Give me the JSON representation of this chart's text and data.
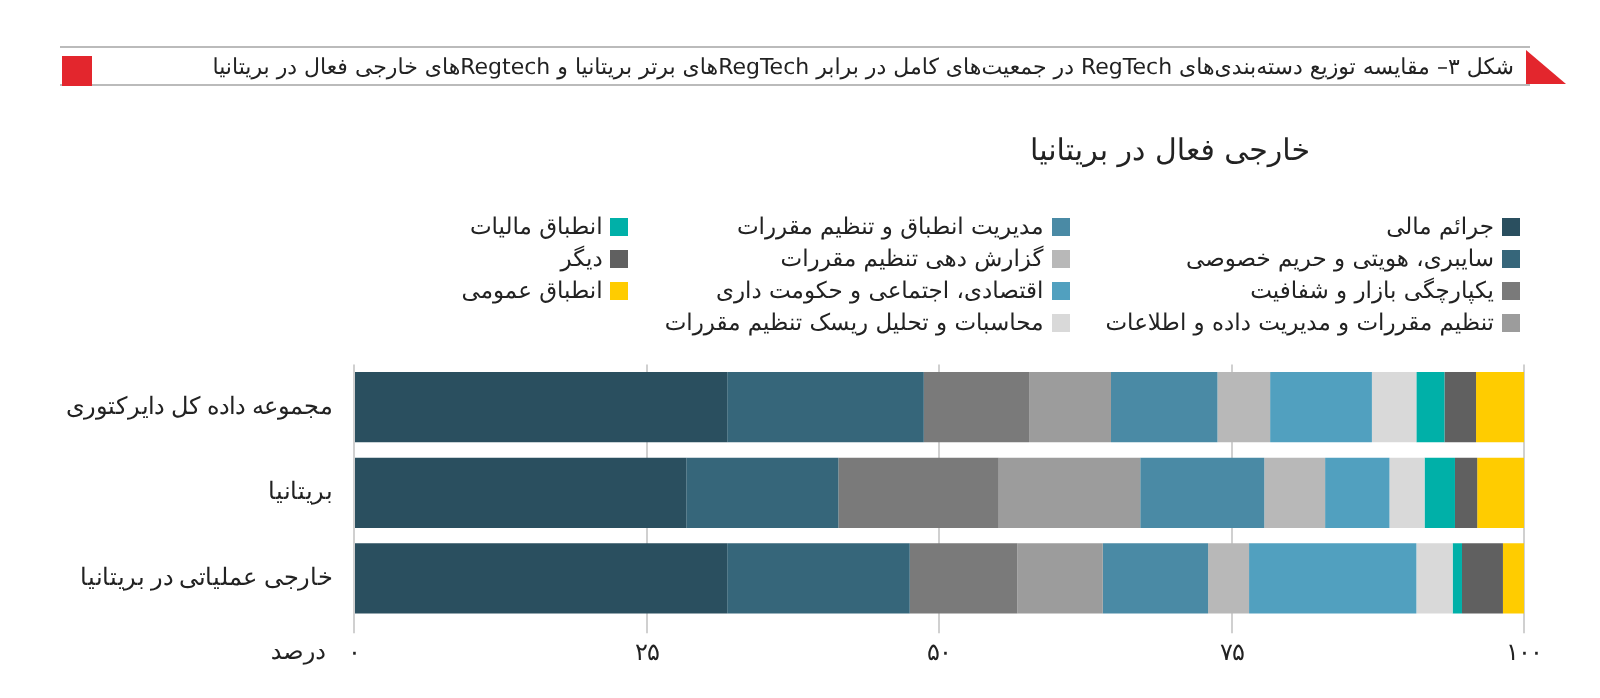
{
  "chart_data": {
    "type": "bar",
    "orientation": "horizontal",
    "stacked": true,
    "title": "شکل ۳– مقایسه توزیع دسته‌بندی‌های RegTech در جمعیت‌های کامل در برابر RegTechهای برتر بریتانیا و Regtechهای خارجی فعال در بریتانیا",
    "subtitle": "خارجی فعال در بریتانیا",
    "xlabel": "درصد",
    "categories": [
      "مجموعه داده کل دایرکتوری",
      "بریتانیا",
      "خارجی عملیاتی در بریتانیا"
    ],
    "xlim": [
      0,
      100
    ],
    "xticks": [
      {
        "value": 0,
        "label": "۰"
      },
      {
        "value": 25,
        "label": "۲۵"
      },
      {
        "value": 50,
        "label": "۵۰"
      },
      {
        "value": 75,
        "label": "۷۵"
      },
      {
        "value": 100,
        "label": "۱۰۰"
      }
    ],
    "grid": "x",
    "legend": "top",
    "series": [
      {
        "name": "جرائم مالی",
        "color": "#2a4f5f",
        "values": [
          31.9,
          28.4,
          31.9
        ]
      },
      {
        "name": "سایبری، هویتی و حریم خصوصی",
        "color": "#36667a",
        "values": [
          16.8,
          13.0,
          15.6
        ]
      },
      {
        "name": "یکپارچگی بازار و شفافیت",
        "color": "#7a7a7a",
        "values": [
          9.0,
          13.7,
          9.2
        ]
      },
      {
        "name": "تنظیم مقررات و مدیریت داده و اطلاعات",
        "color": "#9c9c9c",
        "values": [
          7.0,
          12.1,
          7.3
        ]
      },
      {
        "name": "مدیریت انطباق و تنظیم مقررات",
        "color": "#4a8aa5",
        "values": [
          9.1,
          10.6,
          9.0
        ]
      },
      {
        "name": "گزارش دهی تنظیم مقررات",
        "color": "#b8b8b8",
        "values": [
          4.5,
          5.2,
          3.5
        ]
      },
      {
        "name": "اقتصادی، اجتماعی و حکومت داری",
        "color": "#51a0bf",
        "values": [
          8.7,
          5.5,
          14.3
        ]
      },
      {
        "name": "محاسبات و تحلیل ریسک تنظیم مقررات",
        "color": "#d9d9d9",
        "values": [
          3.8,
          3.0,
          3.1
        ]
      },
      {
        "name": "انطباق مالیات",
        "color": "#00b0a8",
        "values": [
          2.4,
          2.6,
          0.8
        ]
      },
      {
        "name": "دیگر",
        "color": "#606060",
        "values": [
          2.7,
          1.9,
          3.5
        ]
      },
      {
        "name": "انطباق عمومی",
        "color": "#ffcc00",
        "values": [
          4.1,
          4.0,
          1.8
        ]
      }
    ]
  }
}
